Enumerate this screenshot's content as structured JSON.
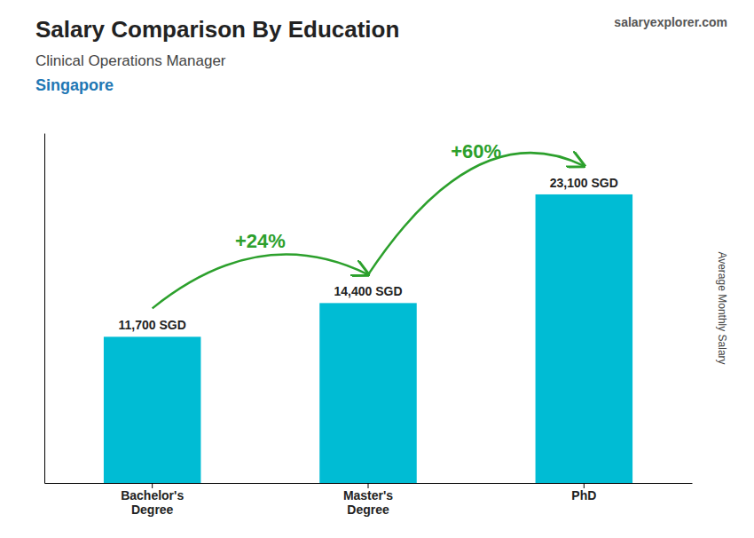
{
  "chart_data": {
    "type": "bar",
    "title": "Salary Comparison By Education",
    "subtitle": "Clinical Operations Manager",
    "location": "Singapore",
    "source": "salaryexplorer.com",
    "categories": [
      "Bachelor's\nDegree",
      "Master's\nDegree",
      "PhD"
    ],
    "values": [
      11700,
      14400,
      23100
    ],
    "value_labels": [
      "11,700 SGD",
      "14,400 SGD",
      "23,100 SGD"
    ],
    "data_labels": true,
    "color": "#00bcd4",
    "annotations": [
      "+24%",
      "+60%"
    ],
    "ylabel": "Average Monthly Salary",
    "ylim": [
      0,
      28000
    ],
    "tick_labels": "x",
    "grid": false
  }
}
